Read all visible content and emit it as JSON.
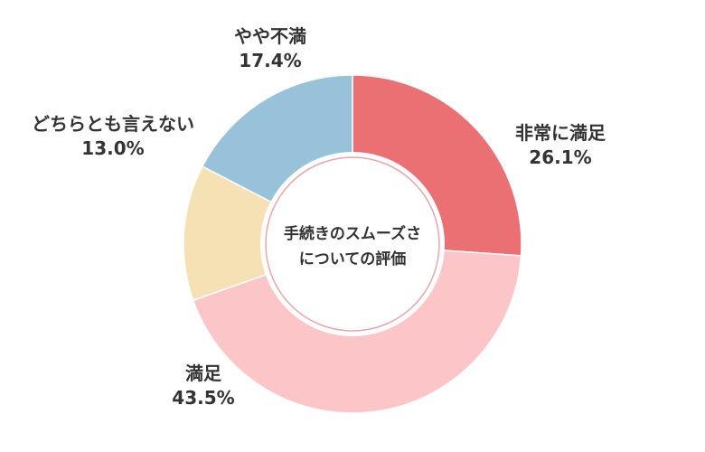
{
  "chart_data": {
    "type": "pie",
    "center_title": [
      "手続きのスムーズさ",
      "についての評価"
    ],
    "slices": [
      {
        "label": "非常に満足",
        "value": 26.1,
        "value_text": "26.1%",
        "color": "#ea7074"
      },
      {
        "label": "満足",
        "value": 43.5,
        "value_text": "43.5%",
        "color": "#fcc5c8"
      },
      {
        "label": "どちらとも言えない",
        "value": 13.0,
        "value_text": "13.0%",
        "color": "#f6e1b4"
      },
      {
        "label": "やや不満",
        "value": 17.4,
        "value_text": "17.4%",
        "color": "#97c2da"
      }
    ]
  }
}
